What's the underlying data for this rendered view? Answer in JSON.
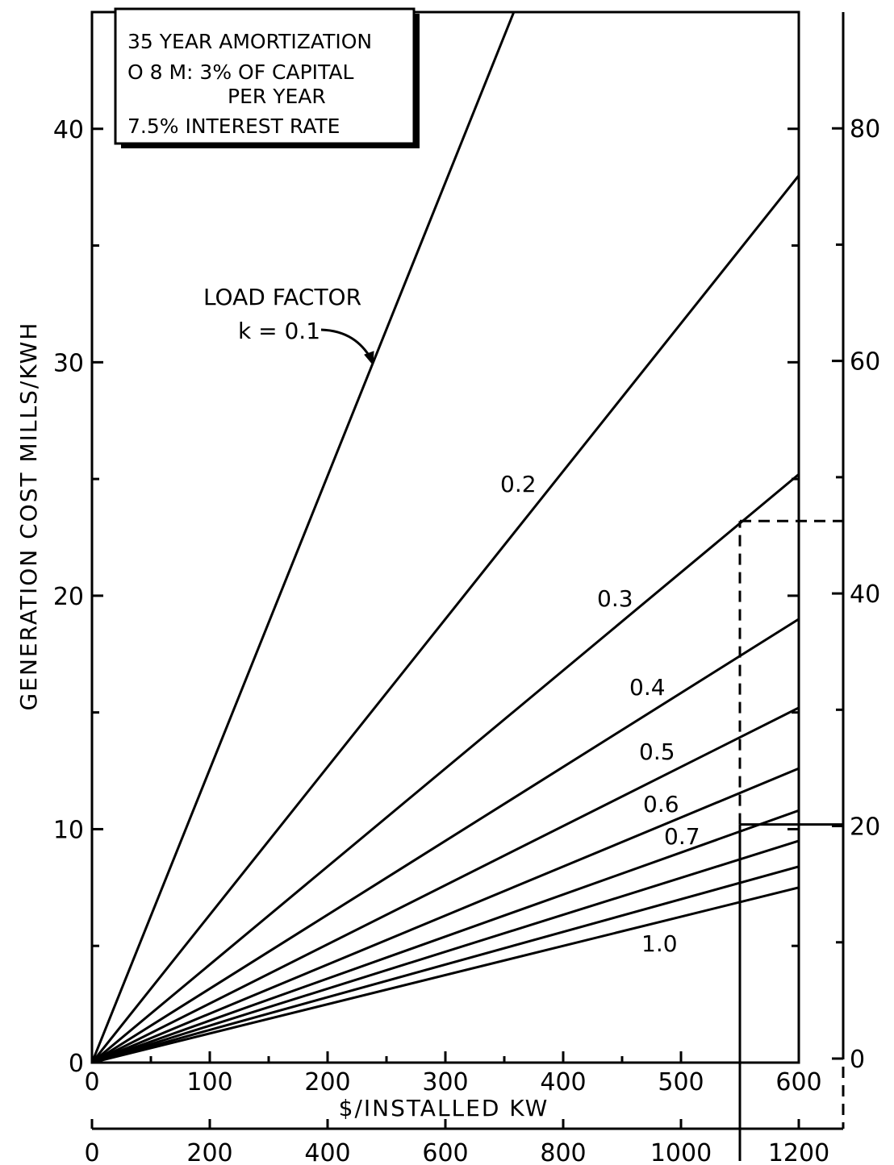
{
  "chart_data": {
    "type": "line",
    "ylabel": "GENERATION COST  MILLS/KWH",
    "xlabel": "$/INSTALLED KW",
    "xlim": [
      0,
      600
    ],
    "ylim": [
      0,
      45
    ],
    "x_ticks": [
      "0",
      "100",
      "200",
      "300",
      "400",
      "500",
      "600"
    ],
    "y_ticks": [
      "0",
      "10",
      "20",
      "30",
      "40"
    ],
    "y_minor_ticks": [
      5,
      15,
      25,
      35
    ],
    "secondary_x_ticks": [
      "0",
      "200",
      "400",
      "600",
      "800",
      "1000",
      "1200"
    ],
    "secondary_y_ticks": [
      "0",
      "20",
      "40",
      "60",
      "80"
    ],
    "grid": false,
    "notes": [
      "35 YEAR AMORTIZATION",
      "O 8 M: 3% OF CAPITAL",
      "PER YEAR",
      "7.5% INTEREST RATE"
    ],
    "legend_title": "LOAD FACTOR",
    "series": [
      {
        "name": "k = 0.1",
        "x": [
          0,
          600
        ],
        "y": [
          0,
          75.4
        ]
      },
      {
        "name": "0.2",
        "x": [
          0,
          600
        ],
        "y": [
          0,
          38.0
        ]
      },
      {
        "name": "0.3",
        "x": [
          0,
          600
        ],
        "y": [
          0,
          25.2
        ]
      },
      {
        "name": "0.4",
        "x": [
          0,
          600
        ],
        "y": [
          0,
          19.0
        ]
      },
      {
        "name": "0.5",
        "x": [
          0,
          600
        ],
        "y": [
          0,
          15.2
        ]
      },
      {
        "name": "0.6",
        "x": [
          0,
          600
        ],
        "y": [
          0,
          12.6
        ]
      },
      {
        "name": "0.7",
        "x": [
          0,
          600
        ],
        "y": [
          0,
          10.8
        ]
      },
      {
        "name": "",
        "x": [
          0,
          600
        ],
        "y": [
          0,
          9.5
        ]
      },
      {
        "name": "",
        "x": [
          0,
          600
        ],
        "y": [
          0,
          8.4
        ]
      },
      {
        "name": "1.0",
        "x": [
          0,
          600
        ],
        "y": [
          0,
          7.5
        ]
      }
    ],
    "reference_x": 550,
    "reference_y": 10.2
  }
}
